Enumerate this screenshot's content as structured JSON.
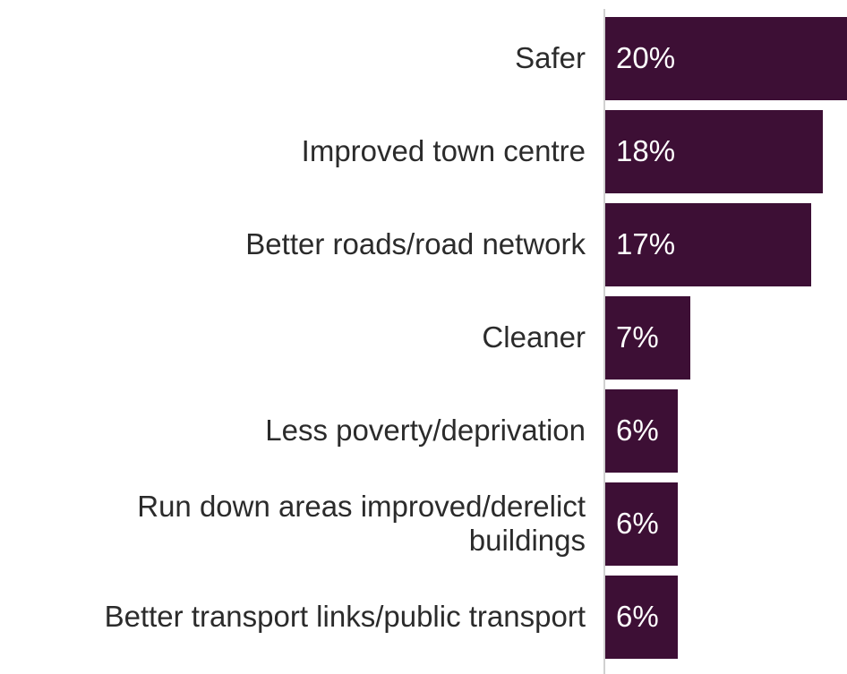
{
  "chart_data": {
    "type": "bar",
    "orientation": "horizontal",
    "categories": [
      "Safer",
      "Improved town centre",
      "Better roads/road network",
      "Cleaner",
      "Less poverty/deprivation",
      "Run down areas improved/derelict buildings",
      "Better transport links/public transport"
    ],
    "values": [
      20,
      18,
      17,
      7,
      6,
      6,
      6
    ],
    "value_labels": [
      "20%",
      "18%",
      "17%",
      "7%",
      "6%",
      "6%",
      "6%"
    ],
    "color": "#3d0f35"
  }
}
